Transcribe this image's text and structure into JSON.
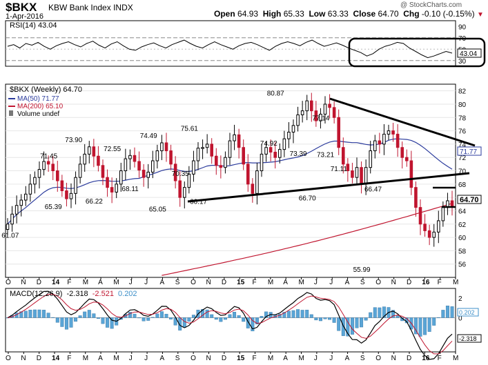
{
  "header": {
    "ticker": "$BKX",
    "name": "KBW Bank Index",
    "exchange": "INDX",
    "date": "1-Apr-2016",
    "open_label": "Open",
    "open": "64.93",
    "high_label": "High",
    "high": "65.33",
    "low_label": "Low",
    "low": "63.33",
    "close_label": "Close",
    "close": "64.70",
    "chg_label": "Chg",
    "chg": "-0.10 (-0.15%)",
    "copyright": "@ StockCharts.com"
  },
  "rsi_panel": {
    "legend": "RSI(14) 43.04",
    "current_value": "43.04",
    "ylim": [
      20,
      100
    ],
    "ticks": [
      "90",
      "70",
      "50",
      "30"
    ],
    "levels": [
      70,
      30
    ],
    "values": [
      55,
      58,
      52,
      60,
      57,
      62,
      55,
      50,
      56,
      60,
      63,
      58,
      54,
      60,
      64,
      57,
      52,
      59,
      63,
      56,
      50,
      48,
      54,
      58,
      61,
      56,
      52,
      58,
      62,
      66,
      60,
      55,
      52,
      58,
      63,
      58,
      54,
      50,
      56,
      60,
      62,
      58,
      53,
      48,
      55,
      60,
      63,
      60,
      56,
      62,
      66,
      60,
      55,
      58,
      61,
      57,
      52,
      48,
      44,
      38,
      42,
      50,
      55,
      58,
      62,
      60,
      52,
      46,
      40,
      35,
      38,
      42,
      46,
      43
    ]
  },
  "main_panel": {
    "legend_title": "$BKX (Weekly) 64.70",
    "legend_ma50": "MA(50) 71.77",
    "legend_ma200": "MA(200) 65.10",
    "legend_volume": "Volume undef",
    "ylim": [
      54,
      83
    ],
    "yticks": [
      "82",
      "80",
      "78",
      "76",
      "74",
      "72",
      "70",
      "68",
      "66",
      "64",
      "62",
      "60",
      "58",
      "56"
    ],
    "ma50_value": "71.77",
    "close_value": "64.70",
    "price_labels": [
      {
        "text": "61.07",
        "x": 0.5,
        "y": 61.07
      },
      {
        "text": "65.39",
        "x": 10,
        "y": 65.39
      },
      {
        "text": "71.45",
        "x": 9,
        "y": 71.45
      },
      {
        "text": "73.90",
        "x": 14.5,
        "y": 73.9
      },
      {
        "text": "66.22",
        "x": 19,
        "y": 66.22
      },
      {
        "text": "72.55",
        "x": 23,
        "y": 72.55
      },
      {
        "text": "68.11",
        "x": 27,
        "y": 68.11
      },
      {
        "text": "74.49",
        "x": 31,
        "y": 74.49
      },
      {
        "text": "65.05",
        "x": 33,
        "y": 65.05
      },
      {
        "text": "70.35",
        "x": 38,
        "y": 70.35
      },
      {
        "text": "75.61",
        "x": 40,
        "y": 75.61
      },
      {
        "text": "66.17",
        "x": 42,
        "y": 66.17
      },
      {
        "text": "74.92",
        "x": 57.5,
        "y": 74.92
      },
      {
        "text": "80.87",
        "x": 59,
        "y": 80.87
      },
      {
        "text": "73.39",
        "x": 64,
        "y": 73.39
      },
      {
        "text": "66.70",
        "x": 66,
        "y": 66.7
      },
      {
        "text": "77.14",
        "x": 69,
        "y": 77.14
      },
      {
        "text": "73.21",
        "x": 70,
        "y": 73.21
      },
      {
        "text": "71.11",
        "x": 73,
        "y": 71.11
      },
      {
        "text": "66.47",
        "x": 80.5,
        "y": 66.47
      },
      {
        "text": "55.99",
        "x": 78,
        "y": 55.99
      }
    ]
  },
  "macd_panel": {
    "legend_prefix": "MACD(12,26,9)",
    "macd_value": "-2.318",
    "signal_value": "-2.521",
    "hist_value": "0.202",
    "ylim": [
      -3.5,
      3
    ],
    "yticks": [
      "2",
      "0",
      "-2"
    ]
  },
  "x_axis": {
    "labels": [
      "O",
      "N",
      "D",
      "14",
      "F",
      "M",
      "A",
      "M",
      "J",
      "J",
      "A",
      "S",
      "O",
      "N",
      "D",
      "15",
      "F",
      "M",
      "A",
      "M",
      "J",
      "J",
      "A",
      "S",
      "O",
      "N",
      "D",
      "16",
      "F",
      "M"
    ],
    "bold": [
      "14",
      "15",
      "16"
    ]
  },
  "chart_data": {
    "type": "candlestick",
    "title": "$BKX (Weekly) 64.70",
    "frequency": "weekly",
    "series": [
      {
        "name": "MA(50)",
        "last": 71.77
      },
      {
        "name": "MA(200)",
        "last": 65.1
      },
      {
        "name": "RSI(14)",
        "last": 43.04
      },
      {
        "name": "MACD(12,26,9)",
        "macd": -2.318,
        "signal": -2.521,
        "histogram": 0.202
      }
    ],
    "annotations": [
      "61.07",
      "65.39",
      "71.45",
      "73.90",
      "66.22",
      "72.55",
      "68.11",
      "74.49",
      "65.05",
      "70.35",
      "75.61",
      "66.17",
      "74.92",
      "80.87",
      "73.39",
      "66.70",
      "77.14",
      "73.21",
      "71.11",
      "66.47",
      "55.99"
    ],
    "closes": [
      62.0,
      63.5,
      64.8,
      65.6,
      66.5,
      68.0,
      69.0,
      70.2,
      71.4,
      71.0,
      70.0,
      68.5,
      67.0,
      65.8,
      66.6,
      69.0,
      71.0,
      72.5,
      73.6,
      72.2,
      70.8,
      69.0,
      67.5,
      66.8,
      68.0,
      70.0,
      71.8,
      72.3,
      71.4,
      70.1,
      69.0,
      69.8,
      71.5,
      73.0,
      74.2,
      73.0,
      71.0,
      68.5,
      66.0,
      67.5,
      69.5,
      71.5,
      73.4,
      73.5,
      74.0,
      72.2,
      70.8,
      70.5,
      72.0,
      74.5,
      75.4,
      73.5,
      71.0,
      68.0,
      66.6,
      70.0,
      72.5,
      73.5,
      72.8,
      72.0,
      73.2,
      74.8,
      75.8,
      76.8,
      78.4,
      79.0,
      80.5,
      79.0,
      77.5,
      78.5,
      80.0,
      79.5,
      78.0,
      73.5,
      71.0,
      70.0,
      69.0,
      70.5,
      68.0,
      70.5,
      73.0,
      74.5,
      74.0,
      75.5,
      76.0,
      75.5,
      73.5,
      72.0,
      71.5,
      67.5,
      64.5,
      62.0,
      61.0,
      60.0,
      60.8,
      62.5,
      64.5,
      65.5,
      64.7
    ]
  }
}
